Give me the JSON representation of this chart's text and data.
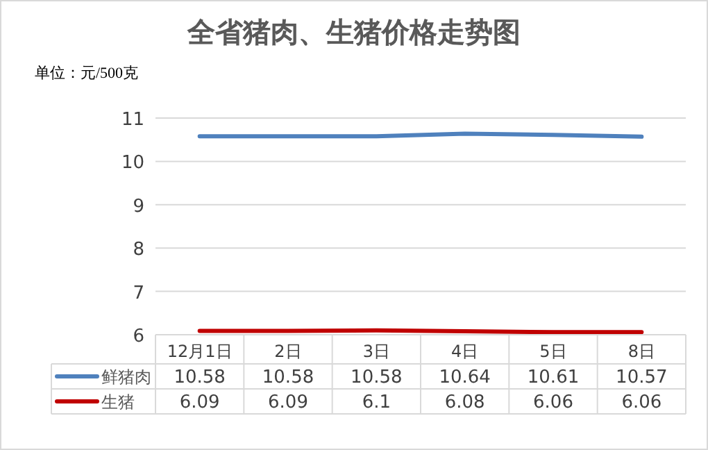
{
  "chart_data": {
    "type": "line",
    "title": "全省猪肉、生猪价格走势图",
    "annotations": [
      "单位：元/500克"
    ],
    "categories": [
      "12月1日",
      "2日",
      "3日",
      "4日",
      "5日",
      "8日"
    ],
    "series": [
      {
        "name": "鲜猪肉",
        "color": "#4f81bd",
        "values": [
          10.58,
          10.58,
          10.58,
          10.64,
          10.61,
          10.57
        ]
      },
      {
        "name": "生猪",
        "color": "#c00000",
        "values": [
          6.09,
          6.09,
          6.1,
          6.08,
          6.06,
          6.06
        ]
      }
    ],
    "ylim": [
      6,
      11
    ],
    "yticks": [
      6,
      7,
      8,
      9,
      10,
      11
    ],
    "grid": "y",
    "data_labels": true,
    "legend": "bottom left"
  }
}
